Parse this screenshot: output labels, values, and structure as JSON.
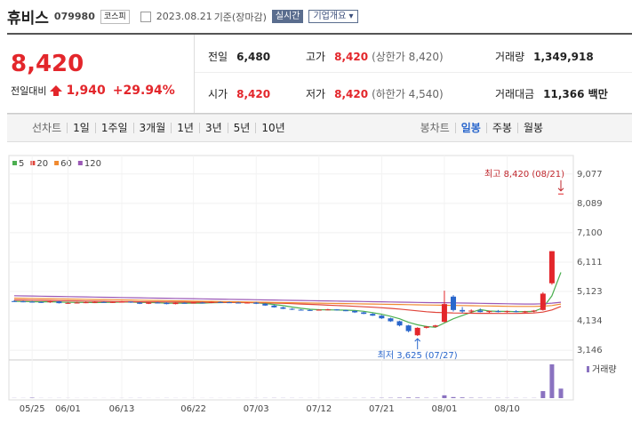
{
  "header": {
    "name": "휴비스",
    "code": "079980",
    "market": "코스피",
    "date": "2023.08.21",
    "basis": "기준(장마감)",
    "realtime": "실시간",
    "company": "기업개요"
  },
  "quote": {
    "price": "8,420",
    "change_label": "전일대비",
    "change": "1,940",
    "change_pct": "+29.94%"
  },
  "stats": [
    {
      "label": "전일",
      "value": "6,480"
    },
    {
      "label": "고가",
      "value": "8,420",
      "note": "(상한가 8,420)"
    },
    {
      "label": "거래량",
      "value": "1,349,918"
    },
    {
      "label": "시가",
      "value": "8,420"
    },
    {
      "label": "저가",
      "value": "8,420",
      "note": "(하한가 4,540)"
    },
    {
      "label": "거래대금",
      "value": "11,366 백만"
    }
  ],
  "tabs": {
    "line_label": "선차트",
    "line": [
      "1일",
      "1주일",
      "3개월",
      "1년",
      "3년",
      "5년",
      "10년"
    ],
    "candle_label": "봉차트",
    "candle": [
      "일봉",
      "주봉",
      "월봉"
    ]
  },
  "chart_data": {
    "type": "candlestick",
    "up_color": "#e3262b",
    "down_color": "#2a67cc",
    "volume_color": "#8a72c0",
    "volume_label": "거래량",
    "grid": true,
    "categories": [
      null,
      null,
      "05/25",
      null,
      null,
      null,
      "06/01",
      null,
      null,
      null,
      null,
      null,
      "06/13",
      null,
      null,
      null,
      null,
      null,
      null,
      null,
      "06/22",
      null,
      null,
      null,
      null,
      null,
      null,
      "07/03",
      null,
      null,
      null,
      null,
      null,
      null,
      "07/12",
      null,
      null,
      null,
      null,
      null,
      null,
      "07/21",
      null,
      null,
      null,
      null,
      null,
      null,
      "08/01",
      null,
      null,
      null,
      null,
      null,
      null,
      "08/10",
      null,
      null,
      null,
      null,
      null,
      null
    ],
    "ylim": [
      2880,
      9400
    ],
    "yticks": [
      {
        "value": 9077,
        "label": "9,077"
      },
      {
        "value": 8089,
        "label": "8,089"
      },
      {
        "value": 7100,
        "label": "7,100"
      },
      {
        "value": 6111,
        "label": "6,111"
      },
      {
        "value": 5123,
        "label": "5,123"
      },
      {
        "value": 4134,
        "label": "4,134"
      },
      {
        "value": 3146,
        "label": "3,146"
      }
    ],
    "candles": [
      {
        "open": 4800,
        "high": 4830,
        "low": 4770,
        "close": 4790
      },
      {
        "open": 4790,
        "high": 4810,
        "low": 4760,
        "close": 4780
      },
      {
        "open": 4780,
        "high": 4800,
        "low": 4750,
        "close": 4770
      },
      {
        "open": 4770,
        "high": 4790,
        "low": 4740,
        "close": 4760
      },
      {
        "open": 4760,
        "high": 4800,
        "low": 4740,
        "close": 4790
      },
      {
        "open": 4790,
        "high": 4800,
        "low": 4720,
        "close": 4730
      },
      {
        "open": 4730,
        "high": 4760,
        "low": 4710,
        "close": 4740
      },
      {
        "open": 4740,
        "high": 4770,
        "low": 4720,
        "close": 4750
      },
      {
        "open": 4750,
        "high": 4780,
        "low": 4730,
        "close": 4760
      },
      {
        "open": 4760,
        "high": 4790,
        "low": 4740,
        "close": 4770
      },
      {
        "open": 4770,
        "high": 4790,
        "low": 4750,
        "close": 4760
      },
      {
        "open": 4760,
        "high": 4780,
        "low": 4740,
        "close": 4770
      },
      {
        "open": 4770,
        "high": 4800,
        "low": 4750,
        "close": 4780
      },
      {
        "open": 4780,
        "high": 4790,
        "low": 4740,
        "close": 4750
      },
      {
        "open": 4750,
        "high": 4770,
        "low": 4700,
        "close": 4710
      },
      {
        "open": 4710,
        "high": 4760,
        "low": 4700,
        "close": 4750
      },
      {
        "open": 4750,
        "high": 4770,
        "low": 4730,
        "close": 4740
      },
      {
        "open": 4740,
        "high": 4760,
        "low": 4690,
        "close": 4700
      },
      {
        "open": 4700,
        "high": 4750,
        "low": 4690,
        "close": 4740
      },
      {
        "open": 4740,
        "high": 4760,
        "low": 4720,
        "close": 4730
      },
      {
        "open": 4730,
        "high": 4760,
        "low": 4720,
        "close": 4750
      },
      {
        "open": 4750,
        "high": 4770,
        "low": 4730,
        "close": 4740
      },
      {
        "open": 4740,
        "high": 4780,
        "low": 4730,
        "close": 4770
      },
      {
        "open": 4770,
        "high": 4790,
        "low": 4750,
        "close": 4760
      },
      {
        "open": 4760,
        "high": 4780,
        "low": 4740,
        "close": 4750
      },
      {
        "open": 4750,
        "high": 4770,
        "low": 4720,
        "close": 4730
      },
      {
        "open": 4730,
        "high": 4760,
        "low": 4720,
        "close": 4750
      },
      {
        "open": 4750,
        "high": 4770,
        "low": 4700,
        "close": 4710
      },
      {
        "open": 4710,
        "high": 4730,
        "low": 4640,
        "close": 4650
      },
      {
        "open": 4650,
        "high": 4670,
        "low": 4580,
        "close": 4590
      },
      {
        "open": 4590,
        "high": 4610,
        "low": 4530,
        "close": 4540
      },
      {
        "open": 4540,
        "high": 4560,
        "low": 4500,
        "close": 4510
      },
      {
        "open": 4510,
        "high": 4530,
        "low": 4480,
        "close": 4500
      },
      {
        "open": 4500,
        "high": 4520,
        "low": 4470,
        "close": 4490
      },
      {
        "open": 4490,
        "high": 4520,
        "low": 4480,
        "close": 4510
      },
      {
        "open": 4510,
        "high": 4540,
        "low": 4490,
        "close": 4520
      },
      {
        "open": 4520,
        "high": 4530,
        "low": 4480,
        "close": 4490
      },
      {
        "open": 4490,
        "high": 4510,
        "low": 4460,
        "close": 4470
      },
      {
        "open": 4470,
        "high": 4480,
        "low": 4400,
        "close": 4420
      },
      {
        "open": 4420,
        "high": 4440,
        "low": 4360,
        "close": 4370
      },
      {
        "open": 4370,
        "high": 4390,
        "low": 4300,
        "close": 4310
      },
      {
        "open": 4310,
        "high": 4330,
        "low": 4200,
        "close": 4220
      },
      {
        "open": 4220,
        "high": 4240,
        "low": 4100,
        "close": 4120
      },
      {
        "open": 4120,
        "high": 4140,
        "low": 3950,
        "close": 3980
      },
      {
        "open": 3980,
        "high": 4000,
        "low": 3750,
        "close": 3790
      },
      {
        "open": 3650,
        "high": 3920,
        "low": 3625,
        "close": 3900
      },
      {
        "open": 3900,
        "high": 3960,
        "low": 3880,
        "close": 3940
      },
      {
        "open": 3940,
        "high": 4000,
        "low": 3920,
        "close": 3980
      },
      {
        "open": 4100,
        "high": 5150,
        "low": 4080,
        "close": 4700
      },
      {
        "open": 4950,
        "high": 5000,
        "low": 4450,
        "close": 4500
      },
      {
        "open": 4500,
        "high": 4600,
        "low": 4400,
        "close": 4450
      },
      {
        "open": 4450,
        "high": 4520,
        "low": 4400,
        "close": 4480
      },
      {
        "open": 4480,
        "high": 4550,
        "low": 4420,
        "close": 4430
      },
      {
        "open": 4430,
        "high": 4480,
        "low": 4400,
        "close": 4460
      },
      {
        "open": 4460,
        "high": 4500,
        "low": 4420,
        "close": 4440
      },
      {
        "open": 4440,
        "high": 4480,
        "low": 4410,
        "close": 4460
      },
      {
        "open": 4460,
        "high": 4490,
        "low": 4420,
        "close": 4430
      },
      {
        "open": 4430,
        "high": 4470,
        "low": 4400,
        "close": 4450
      },
      {
        "open": 4450,
        "high": 4500,
        "low": 4420,
        "close": 4480
      },
      {
        "open": 4500,
        "high": 5100,
        "low": 4480,
        "close": 5050
      },
      {
        "open": 5400,
        "high": 6480,
        "low": 5350,
        "close": 6480
      },
      {
        "open": 8420,
        "high": 8420,
        "low": 8420,
        "close": 8420
      }
    ],
    "volumes": [
      20000,
      15000,
      60000,
      15000,
      12000,
      15000,
      12000,
      10000,
      10000,
      12000,
      10000,
      10000,
      12000,
      15000,
      18000,
      10000,
      10000,
      15000,
      12000,
      10000,
      10000,
      10000,
      12000,
      10000,
      10000,
      12000,
      10000,
      15000,
      20000,
      25000,
      20000,
      18000,
      15000,
      12000,
      10000,
      10000,
      12000,
      15000,
      20000,
      25000,
      30000,
      40000,
      45000,
      60000,
      90000,
      80000,
      40000,
      30000,
      400000,
      150000,
      100000,
      50000,
      40000,
      30000,
      30000,
      25000,
      25000,
      20000,
      25000,
      1000000,
      4800000,
      1349918
    ],
    "series": [
      {
        "name": "5",
        "color": "#4caf50",
        "values": [
          4790,
          4785,
          4780,
          4775,
          4778,
          4766,
          4758,
          4754,
          4754,
          4750,
          4756,
          4762,
          4768,
          4766,
          4754,
          4752,
          4746,
          4730,
          4728,
          4732,
          4732,
          4732,
          4746,
          4750,
          4754,
          4750,
          4752,
          4740,
          4718,
          4686,
          4648,
          4600,
          4558,
          4526,
          4510,
          4506,
          4502,
          4496,
          4482,
          4456,
          4412,
          4358,
          4288,
          4204,
          4084,
          4002,
          3946,
          3918,
          4062,
          4204,
          4314,
          4422,
          4512,
          4464,
          4452,
          4454,
          4444,
          4448,
          4452,
          4574,
          4978,
          5766
        ]
      },
      {
        "name": "20",
        "color": "#e0443a",
        "values": [
          4840,
          4835,
          4830,
          4825,
          4820,
          4815,
          4810,
          4805,
          4800,
          4795,
          4790,
          4785,
          4780,
          4778,
          4776,
          4774,
          4772,
          4770,
          4768,
          4766,
          4764,
          4762,
          4760,
          4758,
          4756,
          4754,
          4752,
          4750,
          4745,
          4735,
          4725,
          4712,
          4700,
          4688,
          4676,
          4664,
          4652,
          4640,
          4625,
          4610,
          4595,
          4575,
          4555,
          4530,
          4500,
          4470,
          4440,
          4420,
          4410,
          4400,
          4395,
          4390,
          4388,
          4386,
          4385,
          4385,
          4385,
          4390,
          4400,
          4430,
          4500,
          4620
        ]
      },
      {
        "name": "60",
        "color": "#f08a30",
        "values": [
          4900,
          4895,
          4890,
          4885,
          4880,
          4875,
          4870,
          4865,
          4860,
          4855,
          4850,
          4845,
          4840,
          4835,
          4830,
          4825,
          4820,
          4815,
          4810,
          4805,
          4800,
          4795,
          4790,
          4785,
          4780,
          4775,
          4770,
          4765,
          4760,
          4755,
          4750,
          4745,
          4740,
          4735,
          4730,
          4725,
          4720,
          4715,
          4710,
          4705,
          4700,
          4695,
          4690,
          4685,
          4680,
          4675,
          4670,
          4665,
          4660,
          4655,
          4650,
          4645,
          4640,
          4635,
          4630,
          4625,
          4620,
          4620,
          4620,
          4630,
          4650,
          4700
        ]
      },
      {
        "name": "120",
        "color": "#9b59b6",
        "values": [
          4980,
          4975,
          4970,
          4965,
          4960,
          4955,
          4950,
          4945,
          4940,
          4935,
          4930,
          4925,
          4920,
          4915,
          4910,
          4905,
          4900,
          4895,
          4890,
          4885,
          4880,
          4875,
          4870,
          4865,
          4860,
          4855,
          4850,
          4845,
          4840,
          4835,
          4830,
          4825,
          4820,
          4815,
          4810,
          4805,
          4800,
          4795,
          4790,
          4785,
          4780,
          4775,
          4770,
          4765,
          4760,
          4755,
          4750,
          4745,
          4745,
          4740,
          4735,
          4730,
          4725,
          4720,
          4715,
          4710,
          4705,
          4700,
          4700,
          4710,
          4730,
          4760
        ]
      }
    ],
    "annotations": [
      {
        "text": "최고 8,420 (08/21)",
        "index": 61,
        "value": 8420,
        "side": "top"
      },
      {
        "text": "최저 3,625 (07/27)",
        "index": 45,
        "value": 3625,
        "side": "bottom"
      }
    ]
  }
}
